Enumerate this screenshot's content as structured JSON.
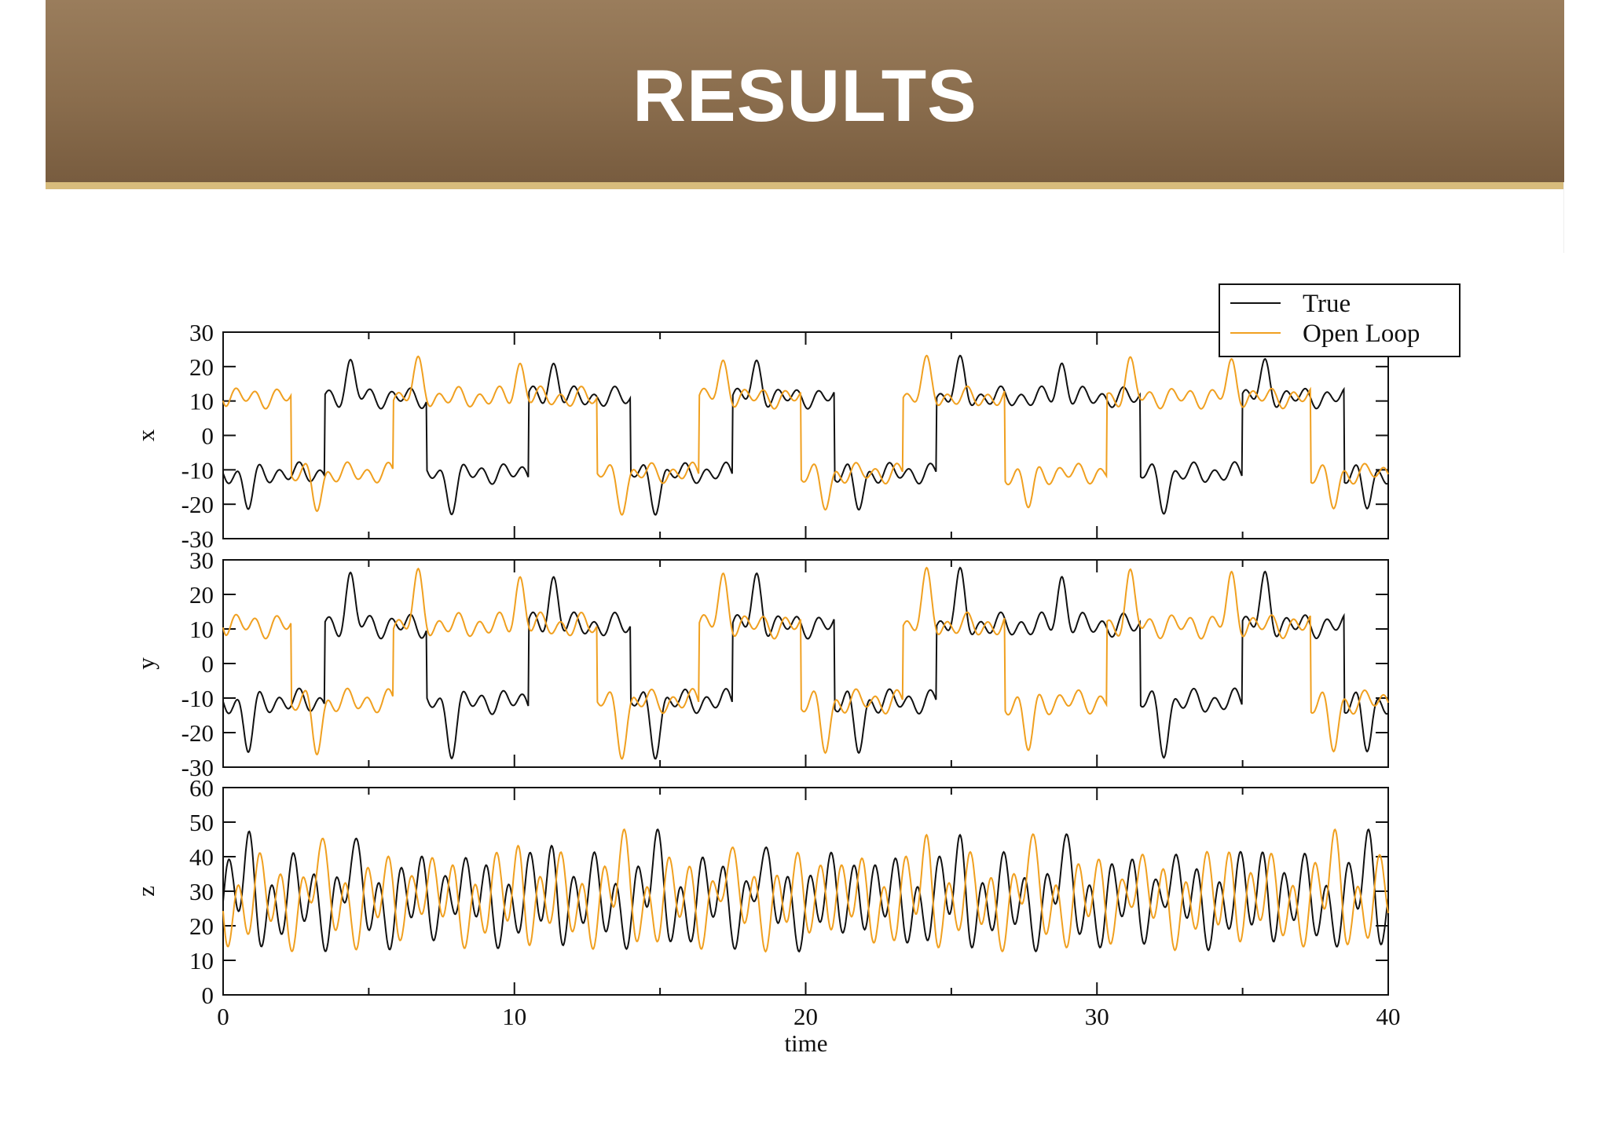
{
  "slide": {
    "title": "RESULTS"
  },
  "colors": {
    "true": "#111111",
    "open_loop": "#f0a020",
    "band": "#8a6d4d",
    "band_stripe": "#d8bc7c"
  },
  "chart_data": {
    "type": "line",
    "xlabel": "time",
    "xlim": [
      0,
      40
    ],
    "x_ticks": [
      "0",
      "10",
      "20",
      "30",
      "40"
    ],
    "legend": {
      "placement": "top-right",
      "entries": [
        "True",
        "Open Loop"
      ]
    },
    "panels": [
      {
        "ylabel": "x",
        "ylim": [
          -30,
          30
        ],
        "y_ticks": [
          "30",
          "20",
          "10",
          "0",
          "-10",
          "-20",
          "-30"
        ],
        "baseline": -9,
        "swing": 12,
        "peak": 18
      },
      {
        "ylabel": "y",
        "ylim": [
          -30,
          30
        ],
        "y_ticks": [
          "30",
          "20",
          "10",
          "0",
          "-10",
          "-20",
          "-30"
        ],
        "baseline": -9,
        "swing": 14,
        "peak": 22
      },
      {
        "ylabel": "z",
        "ylim": [
          0,
          60
        ],
        "y_ticks": [
          "60",
          "50",
          "40",
          "30",
          "20",
          "10",
          "0"
        ],
        "baseline": 27,
        "swing": 17,
        "peak": 45
      }
    ],
    "series": [
      {
        "name": "True",
        "color": "#111111"
      },
      {
        "name": "Open Loop",
        "color": "#f0a020"
      }
    ]
  }
}
